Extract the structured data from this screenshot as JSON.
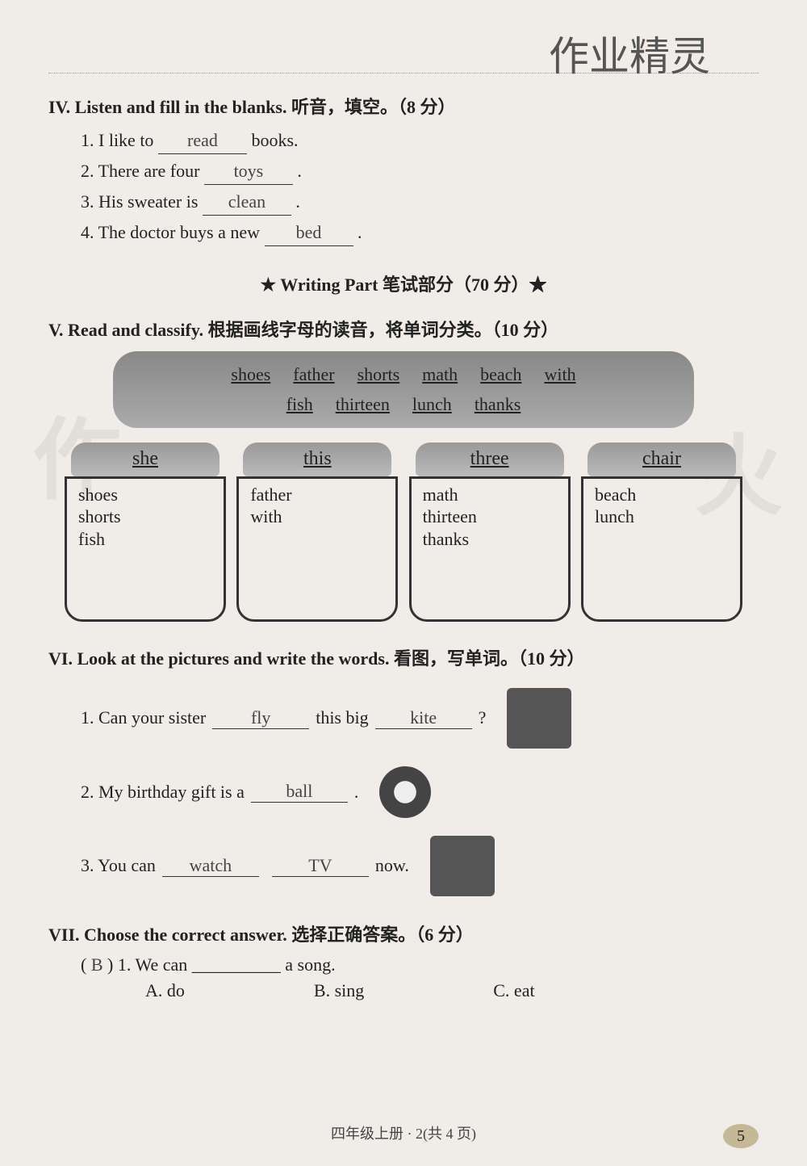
{
  "watermark_top": "作业精灵",
  "section4": {
    "header": "IV. Listen and fill in the blanks. 听音，填空。（8 分）",
    "items": [
      {
        "pre": "1. I like to ",
        "ans": "read",
        "post": " books."
      },
      {
        "pre": "2. There are four ",
        "ans": "toys",
        "post": " ."
      },
      {
        "pre": "3. His sweater is ",
        "ans": "clean",
        "post": " ."
      },
      {
        "pre": "4. The doctor buys a new ",
        "ans": "bed",
        "post": " ."
      }
    ]
  },
  "writing_part": "★ Writing Part 笔试部分（70 分）★",
  "section5": {
    "header": "V. Read and classify. 根据画线字母的读音，将单词分类。（10 分）",
    "word_bank_row1": [
      "shoes",
      "father",
      "shorts",
      "math",
      "beach",
      "with"
    ],
    "word_bank_row2": [
      "fish",
      "thirteen",
      "lunch",
      "thanks"
    ],
    "jars": [
      {
        "lid": "she",
        "words": [
          "shoes",
          "shorts",
          "fish"
        ]
      },
      {
        "lid": "this",
        "words": [
          "father",
          "with"
        ]
      },
      {
        "lid": "three",
        "words": [
          "math",
          "thirteen",
          "thanks"
        ]
      },
      {
        "lid": "chair",
        "words": [
          "beach",
          "lunch"
        ]
      }
    ]
  },
  "section6": {
    "header": "VI. Look at the pictures and write the words. 看图，写单词。（10 分）",
    "items": [
      {
        "parts": [
          "1. Can your sister ",
          "fly",
          " this big ",
          "kite",
          " ?"
        ],
        "img": "girl-kite"
      },
      {
        "parts": [
          "2. My birthday gift is a ",
          "ball",
          " ."
        ],
        "img": "ball"
      },
      {
        "parts": [
          "3. You can ",
          "watch",
          " ",
          "TV",
          " now."
        ],
        "img": "tv-sofa"
      }
    ]
  },
  "section7": {
    "header": "VII. Choose the correct answer. 选择正确答案。（6 分）",
    "q1": {
      "bracket": "B",
      "text": "1. We can __________ a song.",
      "choices": [
        "A. do",
        "B. sing",
        "C. eat"
      ]
    }
  },
  "footer": "四年级上册 · 2(共 4 页)",
  "page_num": "5"
}
